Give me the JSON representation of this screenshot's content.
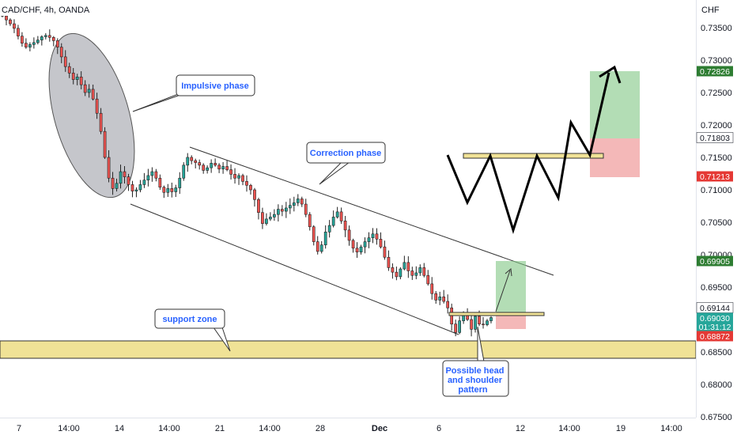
{
  "chart_data": {
    "type": "candlestick",
    "title": "CAD/CHF, 4h, OANDA",
    "currency": "CHF",
    "y_range": [
      0.675,
      0.738
    ],
    "y_ticks": [
      "0.73500",
      "0.73000",
      "0.72500",
      "0.72000",
      "0.71500",
      "0.71000",
      "0.70500",
      "0.70000",
      "0.69500",
      "0.69000",
      "0.68500",
      "0.68000",
      "0.67500"
    ],
    "x_ticks": [
      "7",
      "14:00",
      "14",
      "14:00",
      "21",
      "14:00",
      "28",
      "Dec",
      "6",
      "12",
      "14:00",
      "19",
      "14:00"
    ],
    "price_tags": [
      {
        "value": "0.72826",
        "bg": "#2e7d32",
        "fg": "#ffffff"
      },
      {
        "value": "0.71803",
        "bg": "#ffffff",
        "fg": "#131722"
      },
      {
        "value": "0.71213",
        "bg": "#e53935",
        "fg": "#ffffff"
      },
      {
        "value": "0.69905",
        "bg": "#2e7d32",
        "fg": "#ffffff"
      },
      {
        "value": "0.69144",
        "bg": "#ffffff",
        "fg": "#131722"
      },
      {
        "value": "0.69030",
        "bg": "#26a69a",
        "fg": "#ffffff"
      },
      {
        "value": "01:31:12",
        "bg": "#26a69a",
        "fg": "#ffffff"
      },
      {
        "value": "0.68872",
        "bg": "#e53935",
        "fg": "#ffffff"
      }
    ],
    "closes": [
      0.7368,
      0.7362,
      0.7356,
      0.7349,
      0.7337,
      0.7326,
      0.732,
      0.7324,
      0.7327,
      0.7331,
      0.7336,
      0.7338,
      0.7335,
      0.733,
      0.732,
      0.7305,
      0.729,
      0.728,
      0.727,
      0.7274,
      0.7262,
      0.725,
      0.7255,
      0.724,
      0.7218,
      0.719,
      0.715,
      0.7118,
      0.7102,
      0.711,
      0.7128,
      0.712,
      0.7108,
      0.7098,
      0.71,
      0.7108,
      0.7115,
      0.7122,
      0.7128,
      0.7118,
      0.7104,
      0.7096,
      0.7102,
      0.7097,
      0.7103,
      0.7118,
      0.7138,
      0.715,
      0.7145,
      0.7142,
      0.7138,
      0.713,
      0.7134,
      0.7141,
      0.7138,
      0.7132,
      0.7136,
      0.7131,
      0.7124,
      0.7118,
      0.7122,
      0.7113,
      0.7107,
      0.71,
      0.7085,
      0.7065,
      0.7048,
      0.7055,
      0.7058,
      0.7062,
      0.707,
      0.7067,
      0.7072,
      0.7076,
      0.708,
      0.7086,
      0.7078,
      0.7062,
      0.7043,
      0.702,
      0.7005,
      0.7015,
      0.7035,
      0.7045,
      0.7058,
      0.7066,
      0.7052,
      0.7038,
      0.7022,
      0.701,
      0.7004,
      0.7012,
      0.702,
      0.7026,
      0.7032,
      0.7024,
      0.7012,
      0.6996,
      0.698,
      0.6973,
      0.6966,
      0.6978,
      0.6988,
      0.6975,
      0.6968,
      0.6972,
      0.698,
      0.6968,
      0.6955,
      0.694,
      0.693,
      0.6935,
      0.6928,
      0.6918,
      0.6893,
      0.688,
      0.6898,
      0.691,
      0.69,
      0.6885,
      0.6905,
      0.6893,
      0.6892,
      0.6898,
      0.6903
    ],
    "annotations": {
      "impulsive": "Impulsive phase",
      "correction": "Correction phase",
      "support": "support zone",
      "hs": "Possible head and shoulder pattern"
    }
  }
}
